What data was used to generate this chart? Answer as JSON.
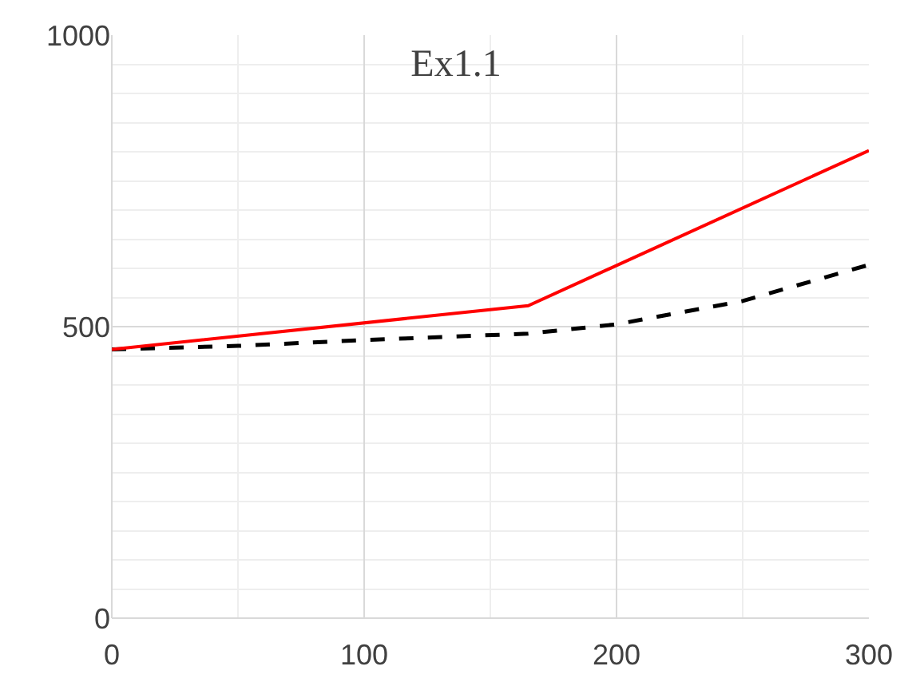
{
  "chart_data": {
    "type": "line",
    "title": "Ex1.1",
    "series": [
      {
        "color": "#ff0000",
        "x": [
          0,
          165,
          300
        ],
        "values": [
          461,
          536,
          802
        ],
        "line_style": "solid"
      },
      {
        "color": "#000000",
        "x": [
          0,
          50,
          100,
          165,
          200,
          250,
          300
        ],
        "values": [
          461,
          467,
          477,
          488,
          504,
          544,
          606
        ],
        "line_style": "dashed"
      }
    ],
    "xlim": [
      0,
      300
    ],
    "xticks": [
      0,
      100,
      200,
      300
    ],
    "ylim": [
      0,
      1000
    ],
    "yticks": [
      0,
      500,
      1000
    ],
    "grid": true,
    "marker": "none"
  }
}
